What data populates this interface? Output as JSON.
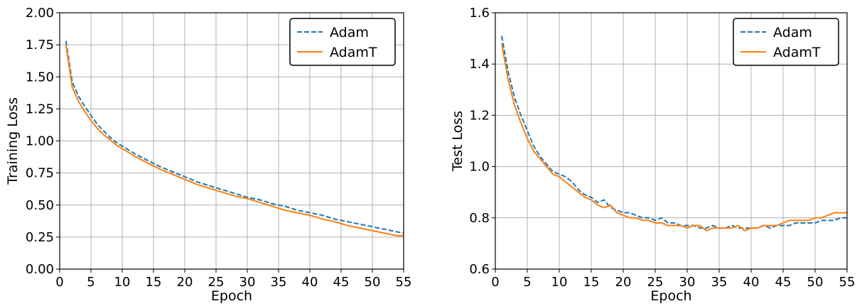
{
  "chart_data": [
    {
      "type": "line",
      "title": "",
      "xlabel": "Epoch",
      "ylabel": "Training Loss",
      "xlim": [
        0,
        55
      ],
      "ylim": [
        0.0,
        2.0
      ],
      "xticks": [
        0,
        5,
        10,
        15,
        20,
        25,
        30,
        35,
        40,
        45,
        50,
        55
      ],
      "yticks": [
        0.0,
        0.25,
        0.5,
        0.75,
        1.0,
        1.25,
        1.5,
        1.75,
        2.0
      ],
      "xtick_labels": [
        "0",
        "5",
        "10",
        "15",
        "20",
        "25",
        "30",
        "35",
        "40",
        "45",
        "50",
        "55"
      ],
      "ytick_labels": [
        "0.00",
        "0.25",
        "0.50",
        "0.75",
        "1.00",
        "1.25",
        "1.50",
        "1.75",
        "2.00"
      ],
      "grid": true,
      "legend_position": "top-right",
      "series": [
        {
          "name": "Adam",
          "color": "#1f77b4",
          "style": "dashed",
          "x": [
            1,
            2,
            3,
            4,
            5,
            6,
            7,
            8,
            9,
            10,
            12,
            14,
            16,
            18,
            20,
            22,
            24,
            26,
            28,
            30,
            32,
            34,
            36,
            38,
            40,
            42,
            44,
            46,
            48,
            50,
            52,
            54,
            55
          ],
          "values": [
            1.78,
            1.46,
            1.35,
            1.27,
            1.2,
            1.13,
            1.08,
            1.03,
            0.99,
            0.96,
            0.9,
            0.85,
            0.8,
            0.76,
            0.72,
            0.68,
            0.65,
            0.62,
            0.59,
            0.56,
            0.54,
            0.51,
            0.49,
            0.46,
            0.44,
            0.42,
            0.39,
            0.37,
            0.35,
            0.33,
            0.31,
            0.29,
            0.28
          ]
        },
        {
          "name": "AdamT",
          "color": "#ff7f0e",
          "style": "solid",
          "x": [
            1,
            2,
            3,
            4,
            5,
            6,
            7,
            8,
            9,
            10,
            12,
            14,
            16,
            18,
            20,
            22,
            24,
            26,
            28,
            30,
            32,
            34,
            36,
            38,
            40,
            42,
            44,
            46,
            48,
            50,
            52,
            54,
            55
          ],
          "values": [
            1.75,
            1.42,
            1.31,
            1.23,
            1.16,
            1.1,
            1.05,
            1.01,
            0.97,
            0.94,
            0.88,
            0.83,
            0.78,
            0.74,
            0.7,
            0.66,
            0.63,
            0.6,
            0.57,
            0.55,
            0.52,
            0.49,
            0.46,
            0.44,
            0.42,
            0.39,
            0.37,
            0.34,
            0.32,
            0.3,
            0.28,
            0.26,
            0.26
          ]
        }
      ]
    },
    {
      "type": "line",
      "title": "",
      "xlabel": "Epoch",
      "ylabel": "Test Loss",
      "xlim": [
        0,
        55
      ],
      "ylim": [
        0.6,
        1.6
      ],
      "xticks": [
        0,
        5,
        10,
        15,
        20,
        25,
        30,
        35,
        40,
        45,
        50,
        55
      ],
      "yticks": [
        0.6,
        0.8,
        1.0,
        1.2,
        1.4,
        1.6
      ],
      "xtick_labels": [
        "0",
        "5",
        "10",
        "15",
        "20",
        "25",
        "30",
        "35",
        "40",
        "45",
        "50",
        "55"
      ],
      "ytick_labels": [
        "0.6",
        "0.8",
        "1.0",
        "1.2",
        "1.4",
        "1.6"
      ],
      "grid": true,
      "legend_position": "top-right",
      "series": [
        {
          "name": "Adam",
          "color": "#1f77b4",
          "style": "dashed",
          "x": [
            1,
            2,
            3,
            4,
            5,
            6,
            7,
            8,
            9,
            10,
            11,
            12,
            13,
            14,
            15,
            16,
            17,
            18,
            19,
            20,
            21,
            22,
            23,
            24,
            25,
            26,
            27,
            28,
            29,
            30,
            31,
            32,
            33,
            34,
            35,
            36,
            37,
            38,
            39,
            40,
            41,
            42,
            43,
            44,
            45,
            46,
            47,
            48,
            49,
            50,
            51,
            52,
            53,
            54,
            55
          ],
          "values": [
            1.51,
            1.37,
            1.27,
            1.2,
            1.14,
            1.08,
            1.04,
            1.01,
            0.98,
            0.97,
            0.96,
            0.94,
            0.91,
            0.89,
            0.88,
            0.86,
            0.87,
            0.84,
            0.83,
            0.82,
            0.82,
            0.81,
            0.8,
            0.8,
            0.79,
            0.8,
            0.78,
            0.78,
            0.77,
            0.77,
            0.77,
            0.76,
            0.76,
            0.77,
            0.76,
            0.76,
            0.77,
            0.76,
            0.76,
            0.76,
            0.76,
            0.77,
            0.76,
            0.77,
            0.77,
            0.77,
            0.78,
            0.78,
            0.78,
            0.78,
            0.79,
            0.79,
            0.79,
            0.8,
            0.8
          ]
        },
        {
          "name": "AdamT",
          "color": "#ff7f0e",
          "style": "solid",
          "x": [
            1,
            2,
            3,
            4,
            5,
            6,
            7,
            8,
            9,
            10,
            11,
            12,
            13,
            14,
            15,
            16,
            17,
            18,
            19,
            20,
            21,
            22,
            23,
            24,
            25,
            26,
            27,
            28,
            29,
            30,
            31,
            32,
            33,
            34,
            35,
            36,
            37,
            38,
            39,
            40,
            41,
            42,
            43,
            44,
            45,
            46,
            47,
            48,
            49,
            50,
            51,
            52,
            53,
            54,
            55
          ],
          "values": [
            1.48,
            1.34,
            1.24,
            1.17,
            1.11,
            1.06,
            1.03,
            1.0,
            0.97,
            0.96,
            0.94,
            0.92,
            0.9,
            0.88,
            0.87,
            0.85,
            0.84,
            0.85,
            0.82,
            0.81,
            0.8,
            0.8,
            0.79,
            0.79,
            0.78,
            0.78,
            0.77,
            0.77,
            0.77,
            0.76,
            0.77,
            0.77,
            0.75,
            0.76,
            0.76,
            0.76,
            0.76,
            0.77,
            0.75,
            0.76,
            0.76,
            0.77,
            0.77,
            0.77,
            0.78,
            0.79,
            0.79,
            0.79,
            0.79,
            0.8,
            0.8,
            0.81,
            0.82,
            0.82,
            0.82
          ]
        }
      ]
    }
  ]
}
